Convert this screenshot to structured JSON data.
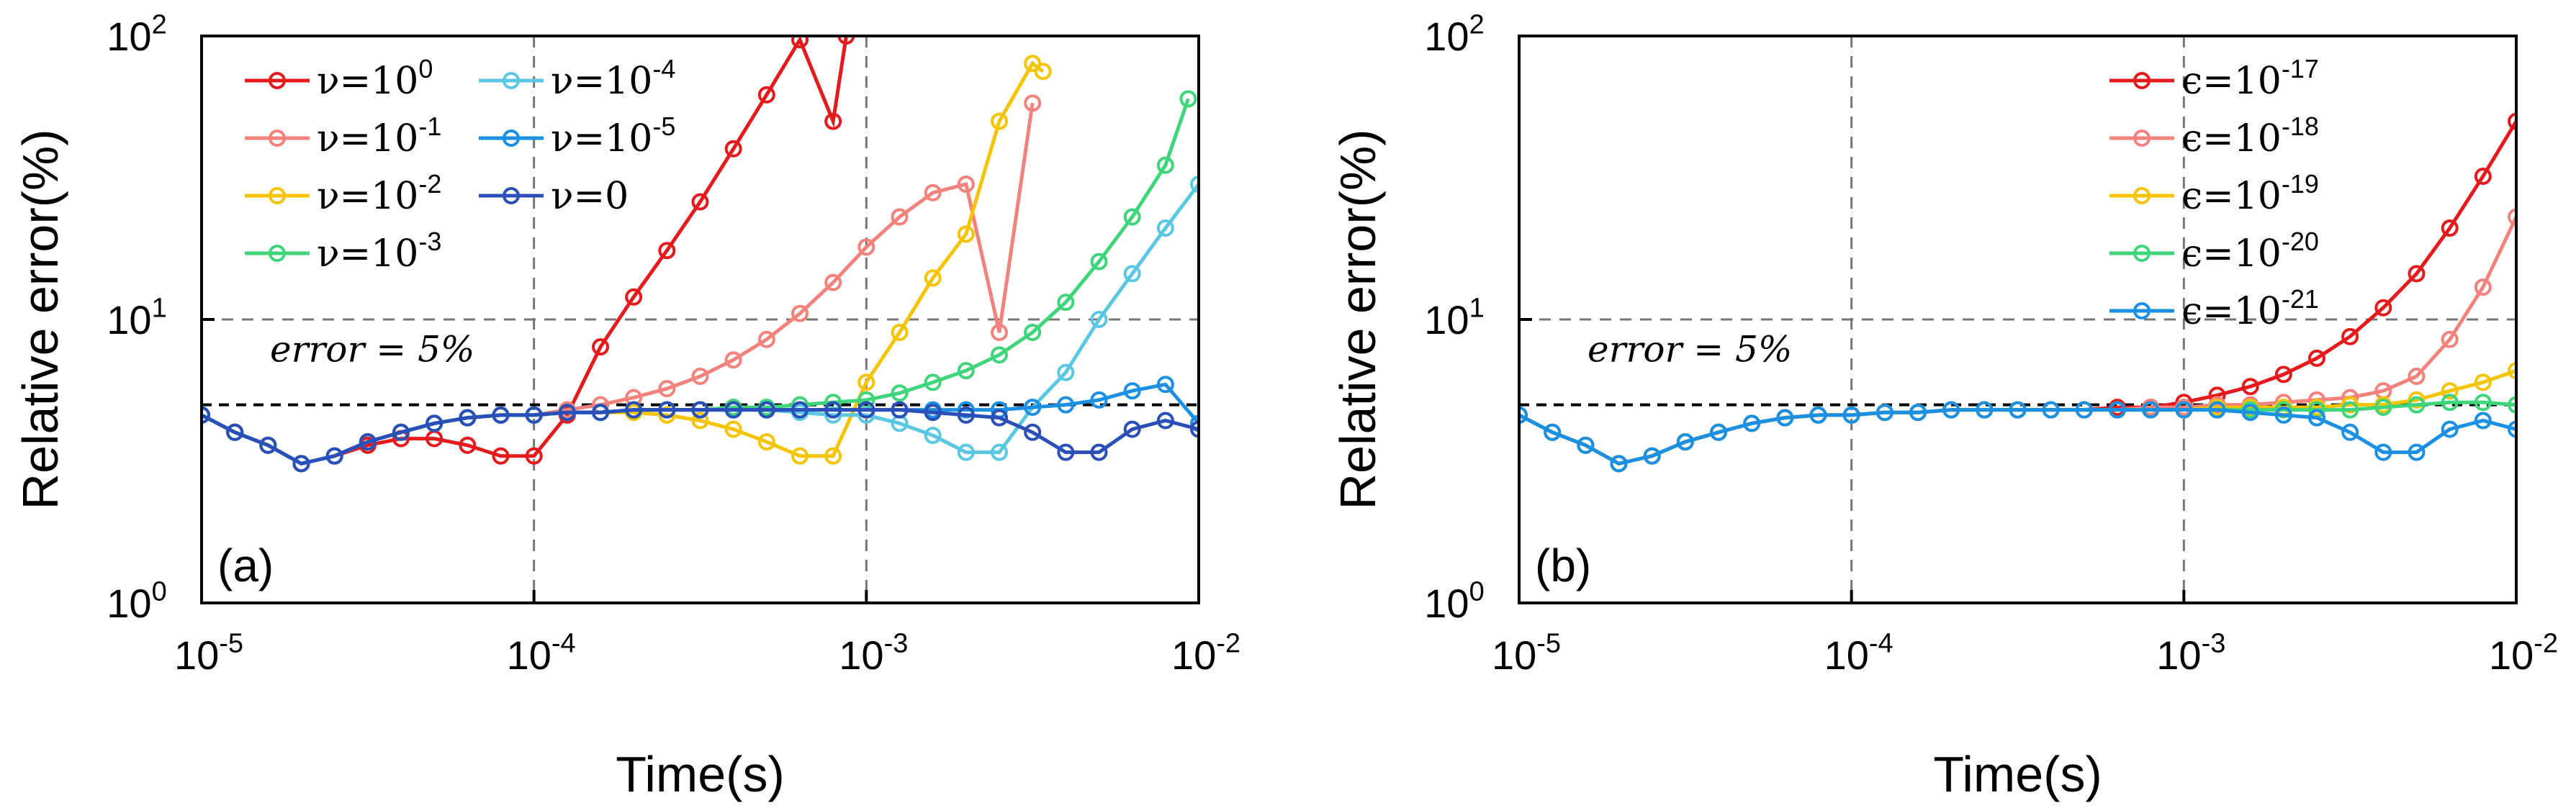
{
  "chart_data": [
    {
      "type": "line",
      "panel_label": "(a)",
      "xscale": "log",
      "yscale": "log",
      "xlabel": "Time(s)",
      "ylabel": "Relative error(%)",
      "xlim": [
        1e-05,
        0.01
      ],
      "ylim": [
        1,
        100
      ],
      "xticks": [
        {
          "base": "10",
          "exp": "-5"
        },
        {
          "base": "10",
          "exp": "-4"
        },
        {
          "base": "10",
          "exp": "-3"
        },
        {
          "base": "10",
          "exp": "-2"
        }
      ],
      "yticks": [
        {
          "base": "10",
          "exp": "0"
        },
        {
          "base": "10",
          "exp": "1"
        },
        {
          "base": "10",
          "exp": "2"
        }
      ],
      "grid": "dashed at decades",
      "reference_lines": [
        {
          "y": 5,
          "label": "error = 5%"
        }
      ],
      "legend_position": "top-left, two columns",
      "series": [
        {
          "name": "ν=10^0",
          "legend_base": "ν=10",
          "legend_exp": "0",
          "color": "#e41a1c",
          "x": [
            1e-05,
            1.259e-05,
            1.585e-05,
            1.995e-05,
            2.512e-05,
            3.162e-05,
            3.981e-05,
            5.012e-05,
            6.31e-05,
            7.943e-05,
            0.0001,
            0.0001259,
            0.0001585,
            0.0001995,
            0.0002512,
            0.0003162,
            0.0003981,
            0.0005012,
            0.000631,
            0.0007943,
            0.00087
          ],
          "y": [
            4.6,
            4.0,
            3.6,
            3.1,
            3.3,
            3.6,
            3.8,
            3.8,
            3.6,
            3.3,
            3.3,
            4.6,
            8.0,
            12,
            17.5,
            26,
            40,
            62,
            97,
            50,
            100
          ]
        },
        {
          "name": "ν=10^-1",
          "legend_base": "ν=10",
          "legend_exp": "-1",
          "color": "#f4827c",
          "x": [
            1e-05,
            1.259e-05,
            1.585e-05,
            1.995e-05,
            2.512e-05,
            3.162e-05,
            3.981e-05,
            5.012e-05,
            6.31e-05,
            7.943e-05,
            0.0001,
            0.0001259,
            0.0001585,
            0.0001995,
            0.0002512,
            0.0003162,
            0.0003981,
            0.0005012,
            0.000631,
            0.0007943,
            0.001,
            0.001259,
            0.001585,
            0.001995,
            0.002512,
            0.003162
          ],
          "y": [
            4.6,
            4.0,
            3.6,
            3.1,
            3.3,
            3.7,
            4.0,
            4.3,
            4.5,
            4.6,
            4.6,
            4.8,
            5.0,
            5.3,
            5.7,
            6.3,
            7.2,
            8.5,
            10.5,
            13.5,
            18,
            23,
            28,
            30,
            9,
            58
          ]
        },
        {
          "name": "ν=10^-2",
          "legend_base": "ν=10",
          "legend_exp": "-2",
          "color": "#f5c400",
          "x": [
            1e-05,
            1.259e-05,
            1.585e-05,
            1.995e-05,
            2.512e-05,
            3.162e-05,
            3.981e-05,
            5.012e-05,
            6.31e-05,
            7.943e-05,
            0.0001,
            0.0001259,
            0.0001585,
            0.0001995,
            0.0002512,
            0.0003162,
            0.0003981,
            0.0005012,
            0.000631,
            0.0007943,
            0.001,
            0.001259,
            0.001585,
            0.001995,
            0.002512,
            0.003162,
            0.0034
          ],
          "y": [
            4.6,
            4.0,
            3.6,
            3.1,
            3.3,
            3.7,
            4.0,
            4.3,
            4.5,
            4.6,
            4.6,
            4.7,
            4.7,
            4.7,
            4.6,
            4.4,
            4.1,
            3.7,
            3.3,
            3.3,
            6.0,
            9.0,
            14,
            20,
            50,
            80,
            75
          ]
        },
        {
          "name": "ν=10^-3",
          "legend_base": "ν=10",
          "legend_exp": "-3",
          "color": "#3fd57a",
          "x": [
            1e-05,
            1.259e-05,
            1.585e-05,
            1.995e-05,
            2.512e-05,
            3.162e-05,
            3.981e-05,
            5.012e-05,
            6.31e-05,
            7.943e-05,
            0.0001,
            0.0001259,
            0.0001585,
            0.0001995,
            0.0002512,
            0.0003162,
            0.0003981,
            0.0005012,
            0.000631,
            0.0007943,
            0.001,
            0.001259,
            0.001585,
            0.001995,
            0.002512,
            0.003162,
            0.003981,
            0.005012,
            0.00631,
            0.007943,
            0.0093
          ],
          "y": [
            4.6,
            4.0,
            3.6,
            3.1,
            3.3,
            3.7,
            4.0,
            4.3,
            4.5,
            4.6,
            4.6,
            4.7,
            4.7,
            4.8,
            4.8,
            4.8,
            4.9,
            4.9,
            5.0,
            5.1,
            5.2,
            5.5,
            6.0,
            6.6,
            7.5,
            9.0,
            11.5,
            16,
            23,
            35,
            60
          ]
        },
        {
          "name": "ν=10^-4",
          "legend_base": "ν=10",
          "legend_exp": "-4",
          "color": "#5bc8e3",
          "x": [
            1e-05,
            1.259e-05,
            1.585e-05,
            1.995e-05,
            2.512e-05,
            3.162e-05,
            3.981e-05,
            5.012e-05,
            6.31e-05,
            7.943e-05,
            0.0001,
            0.0001259,
            0.0001585,
            0.0001995,
            0.0002512,
            0.0003162,
            0.0003981,
            0.0005012,
            0.000631,
            0.0007943,
            0.001,
            0.001259,
            0.001585,
            0.001995,
            0.002512,
            0.003162,
            0.003981,
            0.005012,
            0.00631,
            0.007943,
            0.01
          ],
          "y": [
            4.6,
            4.0,
            3.6,
            3.1,
            3.3,
            3.7,
            4.0,
            4.3,
            4.5,
            4.6,
            4.6,
            4.7,
            4.7,
            4.8,
            4.8,
            4.8,
            4.8,
            4.8,
            4.7,
            4.6,
            4.6,
            4.3,
            3.9,
            3.4,
            3.4,
            4.9,
            6.5,
            10,
            14.5,
            21,
            30
          ]
        },
        {
          "name": "ν=10^-5",
          "legend_base": "ν=10",
          "legend_exp": "-5",
          "color": "#1a8fe3",
          "x": [
            1e-05,
            1.259e-05,
            1.585e-05,
            1.995e-05,
            2.512e-05,
            3.162e-05,
            3.981e-05,
            5.012e-05,
            6.31e-05,
            7.943e-05,
            0.0001,
            0.0001259,
            0.0001585,
            0.0001995,
            0.0002512,
            0.0003162,
            0.0003981,
            0.0005012,
            0.000631,
            0.0007943,
            0.001,
            0.001259,
            0.001585,
            0.001995,
            0.002512,
            0.003162,
            0.003981,
            0.005012,
            0.00631,
            0.007943,
            0.01
          ],
          "y": [
            4.6,
            4.0,
            3.6,
            3.1,
            3.3,
            3.7,
            4.0,
            4.3,
            4.5,
            4.6,
            4.6,
            4.7,
            4.7,
            4.8,
            4.8,
            4.8,
            4.8,
            4.8,
            4.8,
            4.8,
            4.8,
            4.8,
            4.8,
            4.8,
            4.8,
            4.9,
            5.0,
            5.2,
            5.6,
            5.9,
            4.3
          ]
        },
        {
          "name": "ν=0",
          "legend_base": "ν=0",
          "legend_exp": "",
          "color": "#2b4fb8",
          "x": [
            1e-05,
            1.259e-05,
            1.585e-05,
            1.995e-05,
            2.512e-05,
            3.162e-05,
            3.981e-05,
            5.012e-05,
            6.31e-05,
            7.943e-05,
            0.0001,
            0.0001259,
            0.0001585,
            0.0001995,
            0.0002512,
            0.0003162,
            0.0003981,
            0.0005012,
            0.000631,
            0.0007943,
            0.001,
            0.001259,
            0.001585,
            0.001995,
            0.002512,
            0.003162,
            0.003981,
            0.005012,
            0.00631,
            0.007943,
            0.01
          ],
          "y": [
            4.6,
            4.0,
            3.6,
            3.1,
            3.3,
            3.7,
            4.0,
            4.3,
            4.5,
            4.6,
            4.6,
            4.7,
            4.7,
            4.8,
            4.8,
            4.8,
            4.8,
            4.8,
            4.8,
            4.8,
            4.8,
            4.8,
            4.7,
            4.6,
            4.5,
            4.0,
            3.4,
            3.4,
            4.1,
            4.4,
            4.1
          ]
        }
      ]
    },
    {
      "type": "line",
      "panel_label": "(b)",
      "xscale": "log",
      "yscale": "log",
      "xlabel": "Time(s)",
      "ylabel": "Relative error(%)",
      "xlim": [
        1e-05,
        0.01
      ],
      "ylim": [
        1,
        100
      ],
      "xticks": [
        {
          "base": "10",
          "exp": "-5"
        },
        {
          "base": "10",
          "exp": "-4"
        },
        {
          "base": "10",
          "exp": "-3"
        },
        {
          "base": "10",
          "exp": "-2"
        }
      ],
      "yticks": [
        {
          "base": "10",
          "exp": "0"
        },
        {
          "base": "10",
          "exp": "1"
        },
        {
          "base": "10",
          "exp": "2"
        }
      ],
      "grid": "dashed at decades",
      "reference_lines": [
        {
          "y": 5,
          "label": "error = 5%"
        }
      ],
      "legend_position": "top-right",
      "series": [
        {
          "name": "ϵ=10^-17",
          "legend_base": "ϵ=10",
          "legend_exp": "-17",
          "color": "#e41a1c",
          "x": [
            1e-05,
            1.259e-05,
            1.585e-05,
            1.995e-05,
            2.512e-05,
            3.162e-05,
            3.981e-05,
            5.012e-05,
            6.31e-05,
            7.943e-05,
            0.0001,
            0.0001259,
            0.0001585,
            0.0001995,
            0.0002512,
            0.0003162,
            0.0003981,
            0.0005012,
            0.000631,
            0.0007943,
            0.001,
            0.001259,
            0.001585,
            0.001995,
            0.002512,
            0.003162,
            0.003981,
            0.005012,
            0.00631,
            0.007943,
            0.01
          ],
          "y": [
            4.6,
            4.0,
            3.6,
            3.1,
            3.3,
            3.7,
            4.0,
            4.3,
            4.5,
            4.6,
            4.6,
            4.7,
            4.7,
            4.8,
            4.8,
            4.8,
            4.8,
            4.8,
            4.9,
            4.9,
            5.1,
            5.4,
            5.8,
            6.4,
            7.3,
            8.7,
            11,
            14.5,
            21,
            32,
            50
          ]
        },
        {
          "name": "ϵ=10^-18",
          "legend_base": "ϵ=10",
          "legend_exp": "-18",
          "color": "#f4827c",
          "x": [
            1e-05,
            1.259e-05,
            1.585e-05,
            1.995e-05,
            2.512e-05,
            3.162e-05,
            3.981e-05,
            5.012e-05,
            6.31e-05,
            7.943e-05,
            0.0001,
            0.0001259,
            0.0001585,
            0.0001995,
            0.0002512,
            0.0003162,
            0.0003981,
            0.0005012,
            0.000631,
            0.0007943,
            0.001,
            0.001259,
            0.001585,
            0.001995,
            0.002512,
            0.003162,
            0.003981,
            0.005012,
            0.00631,
            0.007943,
            0.01
          ],
          "y": [
            4.6,
            4.0,
            3.6,
            3.1,
            3.3,
            3.7,
            4.0,
            4.3,
            4.5,
            4.6,
            4.6,
            4.7,
            4.7,
            4.8,
            4.8,
            4.8,
            4.8,
            4.8,
            4.8,
            4.9,
            4.9,
            5.0,
            5.0,
            5.1,
            5.2,
            5.3,
            5.6,
            6.3,
            8.5,
            13,
            23
          ]
        },
        {
          "name": "ϵ=10^-19",
          "legend_base": "ϵ=10",
          "legend_exp": "-19",
          "color": "#f5c400",
          "x": [
            1e-05,
            1.259e-05,
            1.585e-05,
            1.995e-05,
            2.512e-05,
            3.162e-05,
            3.981e-05,
            5.012e-05,
            6.31e-05,
            7.943e-05,
            0.0001,
            0.0001259,
            0.0001585,
            0.0001995,
            0.0002512,
            0.0003162,
            0.0003981,
            0.0005012,
            0.000631,
            0.0007943,
            0.001,
            0.001259,
            0.001585,
            0.001995,
            0.002512,
            0.003162,
            0.003981,
            0.005012,
            0.00631,
            0.007943,
            0.01
          ],
          "y": [
            4.6,
            4.0,
            3.6,
            3.1,
            3.3,
            3.7,
            4.0,
            4.3,
            4.5,
            4.6,
            4.6,
            4.7,
            4.7,
            4.8,
            4.8,
            4.8,
            4.8,
            4.8,
            4.8,
            4.8,
            4.8,
            4.9,
            4.9,
            4.9,
            4.9,
            5.0,
            5.0,
            5.2,
            5.6,
            6.0,
            6.6
          ]
        },
        {
          "name": "ϵ=10^-20",
          "legend_base": "ϵ=10",
          "legend_exp": "-20",
          "color": "#3fd57a",
          "x": [
            1e-05,
            1.259e-05,
            1.585e-05,
            1.995e-05,
            2.512e-05,
            3.162e-05,
            3.981e-05,
            5.012e-05,
            6.31e-05,
            7.943e-05,
            0.0001,
            0.0001259,
            0.0001585,
            0.0001995,
            0.0002512,
            0.0003162,
            0.0003981,
            0.0005012,
            0.000631,
            0.0007943,
            0.001,
            0.001259,
            0.001585,
            0.001995,
            0.002512,
            0.003162,
            0.003981,
            0.005012,
            0.00631,
            0.007943,
            0.01
          ],
          "y": [
            4.6,
            4.0,
            3.6,
            3.1,
            3.3,
            3.7,
            4.0,
            4.3,
            4.5,
            4.6,
            4.6,
            4.7,
            4.7,
            4.8,
            4.8,
            4.8,
            4.8,
            4.8,
            4.8,
            4.8,
            4.8,
            4.8,
            4.8,
            4.8,
            4.8,
            4.8,
            4.9,
            5.0,
            5.1,
            5.1,
            5.0
          ]
        },
        {
          "name": "ϵ=10^-21",
          "legend_base": "ϵ=10",
          "legend_exp": "-21",
          "color": "#1a8fe3",
          "x": [
            1e-05,
            1.259e-05,
            1.585e-05,
            1.995e-05,
            2.512e-05,
            3.162e-05,
            3.981e-05,
            5.012e-05,
            6.31e-05,
            7.943e-05,
            0.0001,
            0.0001259,
            0.0001585,
            0.0001995,
            0.0002512,
            0.0003162,
            0.0003981,
            0.0005012,
            0.000631,
            0.0007943,
            0.001,
            0.001259,
            0.001585,
            0.001995,
            0.002512,
            0.003162,
            0.003981,
            0.005012,
            0.00631,
            0.007943,
            0.01
          ],
          "y": [
            4.6,
            4.0,
            3.6,
            3.1,
            3.3,
            3.7,
            4.0,
            4.3,
            4.5,
            4.6,
            4.6,
            4.7,
            4.7,
            4.8,
            4.8,
            4.8,
            4.8,
            4.8,
            4.8,
            4.8,
            4.8,
            4.8,
            4.7,
            4.6,
            4.5,
            4.0,
            3.4,
            3.4,
            4.1,
            4.4,
            4.1
          ]
        }
      ]
    }
  ]
}
